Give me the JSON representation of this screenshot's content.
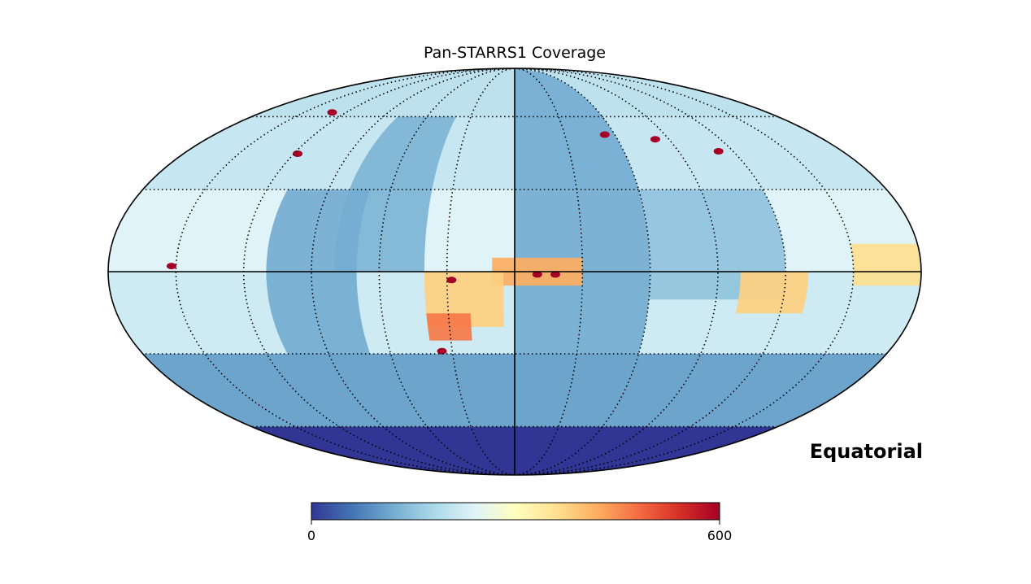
{
  "chart_data": {
    "type": "heatmap",
    "projection": "mollweide",
    "title": "Pan-STARRS1 Coverage",
    "frame_label": "Equatorial",
    "colormap": "RdYlBu_r",
    "colorbar": {
      "orientation": "horizontal",
      "range": [
        0,
        600
      ],
      "tick_labels": [
        "0",
        "600"
      ]
    },
    "graticule": {
      "meridian_step_deg": 30,
      "parallel_step_deg": 30,
      "style": "dotted"
    },
    "dec_band_values": [
      {
        "dec_range": [
          60,
          90
        ],
        "value": 200
      },
      {
        "dec_range": [
          30,
          60
        ],
        "value": 210
      },
      {
        "dec_range": [
          0,
          30
        ],
        "value": 240
      },
      {
        "dec_range": [
          -30,
          0
        ],
        "value": 220
      },
      {
        "dec_range": [
          -60,
          -30
        ],
        "value": 110
      },
      {
        "dec_range": [
          -90,
          -60
        ],
        "value": 0
      }
    ],
    "regions": [
      {
        "lon_range": [
          -60,
          0
        ],
        "lat_range": [
          -30,
          90
        ],
        "value": 120
      },
      {
        "lon_range": [
          40,
          80
        ],
        "lat_range": [
          0,
          60
        ],
        "value": 130
      },
      {
        "lon_range": [
          70,
          110
        ],
        "lat_range": [
          -30,
          30
        ],
        "value": 120
      },
      {
        "lon_range": [
          -120,
          -60
        ],
        "lat_range": [
          -10,
          30
        ],
        "value": 150
      },
      {
        "lon_range": [
          -30,
          10
        ],
        "lat_range": [
          -5,
          5
        ],
        "value": 420
      },
      {
        "lon_range": [
          5,
          40
        ],
        "lat_range": [
          -20,
          0
        ],
        "value": 380
      },
      {
        "lon_range": [
          20,
          40
        ],
        "lat_range": [
          -25,
          -15
        ],
        "value": 470
      },
      {
        "lon_range": [
          -180,
          -150
        ],
        "lat_range": [
          -5,
          10
        ],
        "value": 360
      },
      {
        "lon_range": [
          -130,
          -100
        ],
        "lat_range": [
          -15,
          0
        ],
        "value": 380
      }
    ],
    "hotspots": [
      {
        "lon": -10,
        "lat": -1,
        "value": 600
      },
      {
        "lon": -18,
        "lat": -1,
        "value": 600
      },
      {
        "lon": 28,
        "lat": -3,
        "value": 600
      },
      {
        "lon": 35,
        "lat": -29,
        "value": 600
      },
      {
        "lon": 152,
        "lat": 2,
        "value": 600
      },
      {
        "lon": 130,
        "lat": 62,
        "value": 600
      },
      {
        "lon": 118,
        "lat": 44,
        "value": 600
      },
      {
        "lon": -54,
        "lat": 52,
        "value": 600
      },
      {
        "lon": -82,
        "lat": 50,
        "value": 600
      },
      {
        "lon": -112,
        "lat": 45,
        "value": 600
      }
    ]
  }
}
